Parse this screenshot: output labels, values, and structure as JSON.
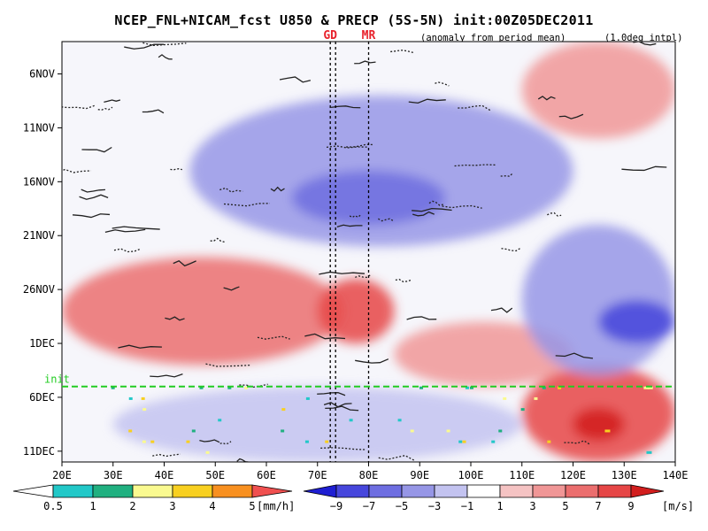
{
  "chart_data": {
    "type": "heatmap",
    "title": "NCEP_FNL+NICAM_fcst U850 & PRECP (5S-5N) init:00Z05DEC2011",
    "subtitle_left": "(anomaly from period mean)",
    "subtitle_right": "(1.0deg intpl)",
    "x_axis": {
      "range": [
        20,
        140
      ],
      "unit": "longitude E",
      "ticks": [
        20,
        30,
        40,
        50,
        60,
        70,
        80,
        90,
        100,
        110,
        120,
        130,
        140
      ],
      "tick_labels": [
        "20E",
        "30E",
        "40E",
        "50E",
        "60E",
        "70E",
        "80E",
        "90E",
        "100E",
        "110E",
        "120E",
        "130E",
        "140E"
      ]
    },
    "y_axis": {
      "range": [
        "2011-11-03",
        "2011-12-12"
      ],
      "reversed": true,
      "ticks": [
        "2011-11-06",
        "2011-11-11",
        "2011-11-16",
        "2011-11-21",
        "2011-11-26",
        "2011-12-01",
        "2011-12-06",
        "2011-12-11"
      ],
      "tick_labels": [
        "6NOV",
        "11NOV",
        "16NOV",
        "21NOV",
        "26NOV",
        "1DEC",
        "6DEC",
        "11DEC"
      ]
    },
    "init_line": {
      "label": "init",
      "date": "2011-12-05",
      "color": "#22cc22"
    },
    "reference_lines": [
      {
        "label": "GD",
        "lon": 72.5
      },
      {
        "label": "MR",
        "lon": 80
      }
    ],
    "u850_field": {
      "unit": "m/s",
      "values_note": "zonal wind anomaly; positive = westerly (red), negative = easterly (blue)",
      "features": [
        {
          "type": "westerly",
          "lon": [
            20,
            75
          ],
          "date": [
            "2011-11-23",
            "2011-12-03"
          ],
          "value": 5
        },
        {
          "type": "westerly",
          "lon": [
            70,
            85
          ],
          "date": [
            "2011-11-25",
            "2011-12-01"
          ],
          "value": 8
        },
        {
          "type": "westerly",
          "lon": [
            85,
            120
          ],
          "date": [
            "2011-11-29",
            "2011-12-05"
          ],
          "value": 4
        },
        {
          "type": "westerly",
          "lon": [
            110,
            140
          ],
          "date": [
            "2011-12-03",
            "2011-12-12"
          ],
          "value": 7
        },
        {
          "type": "westerly",
          "lon": [
            120,
            130
          ],
          "date": [
            "2011-12-07",
            "2011-12-10"
          ],
          "value": 9
        },
        {
          "type": "westerly",
          "lon": [
            110,
            140
          ],
          "date": [
            "2011-11-03",
            "2011-11-12"
          ],
          "value": 3
        },
        {
          "type": "easterly",
          "lon": [
            45,
            120
          ],
          "date": [
            "2011-11-08",
            "2011-11-22"
          ],
          "value": -4
        },
        {
          "type": "easterly",
          "lon": [
            65,
            95
          ],
          "date": [
            "2011-11-15",
            "2011-11-20"
          ],
          "value": -7
        },
        {
          "type": "easterly",
          "lon": [
            110,
            140
          ],
          "date": [
            "2011-11-20",
            "2011-12-04"
          ],
          "value": -5
        },
        {
          "type": "easterly",
          "lon": [
            125,
            140
          ],
          "date": [
            "2011-11-27",
            "2011-12-01"
          ],
          "value": -8
        },
        {
          "type": "easterly",
          "lon": [
            30,
            110
          ],
          "date": [
            "2011-12-05",
            "2011-12-12"
          ],
          "value": -3
        }
      ]
    },
    "colorbar_precip": {
      "unit": "[mm/h]",
      "labels": [
        "0.5",
        "1",
        "2",
        "3",
        "4",
        "5"
      ],
      "colors": [
        "#ffffff",
        "#22c8c8",
        "#20b080",
        "#fafa90",
        "#f8d020",
        "#f89020",
        "#f05050"
      ]
    },
    "colorbar_u850": {
      "unit": "[m/s]",
      "labels": [
        "−9",
        "−7",
        "−5",
        "−3",
        "−1",
        "1",
        "3",
        "5",
        "7",
        "9"
      ],
      "colors": [
        "#1e1ed2",
        "#4646dc",
        "#6e6ee1",
        "#9696e6",
        "#c3c3f0",
        "#ffffff",
        "#f5c3c3",
        "#f09696",
        "#eb6e6e",
        "#e64646",
        "#d21e1e"
      ]
    },
    "colors": {
      "init_line": "#22cc22",
      "marker_text": "#e8222c"
    }
  }
}
